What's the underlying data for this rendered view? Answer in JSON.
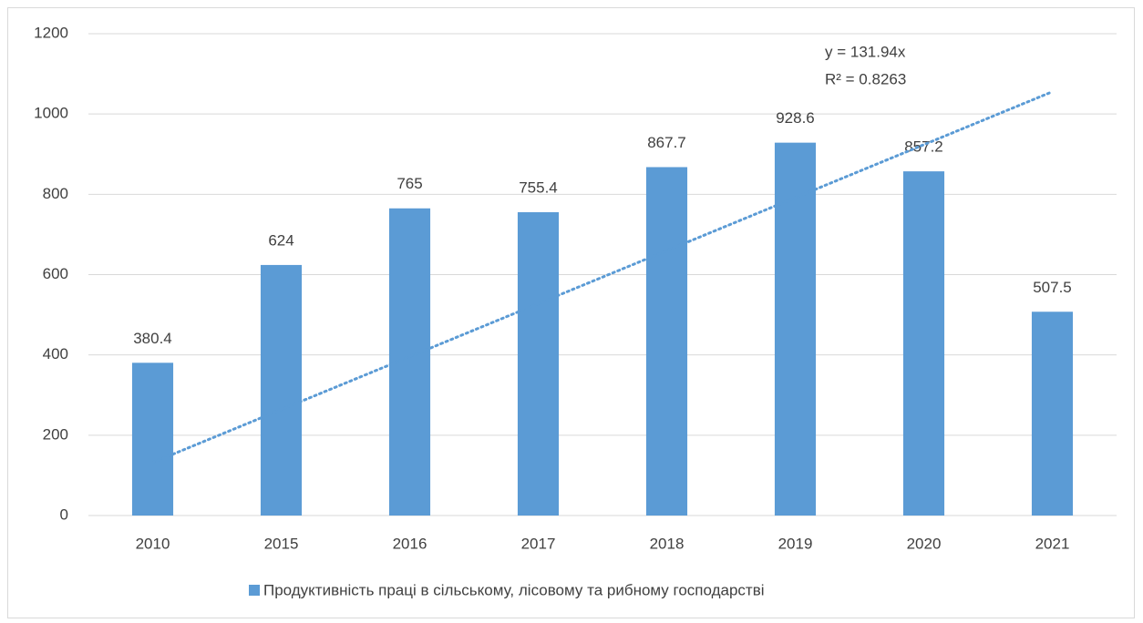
{
  "chart_data": {
    "type": "bar",
    "categories": [
      "2010",
      "2015",
      "2016",
      "2017",
      "2018",
      "2019",
      "2020",
      "2021"
    ],
    "series": [
      {
        "name": "Продуктивність праці в сільському, лісовому та рибному господарстві",
        "color": "#5b9bd5",
        "values": [
          380.4,
          624,
          765,
          755.4,
          867.7,
          928.6,
          857.2,
          507.5
        ]
      }
    ],
    "ylim": [
      0,
      1200
    ],
    "yticks": [
      0,
      200,
      400,
      600,
      800,
      1000,
      1200
    ],
    "grid": true,
    "legend": "bottom",
    "trendline": {
      "equation": "y = 131.94x",
      "r_squared": "R² = 0.8263",
      "slope": 131.94,
      "color": "#5b9bd5"
    }
  }
}
